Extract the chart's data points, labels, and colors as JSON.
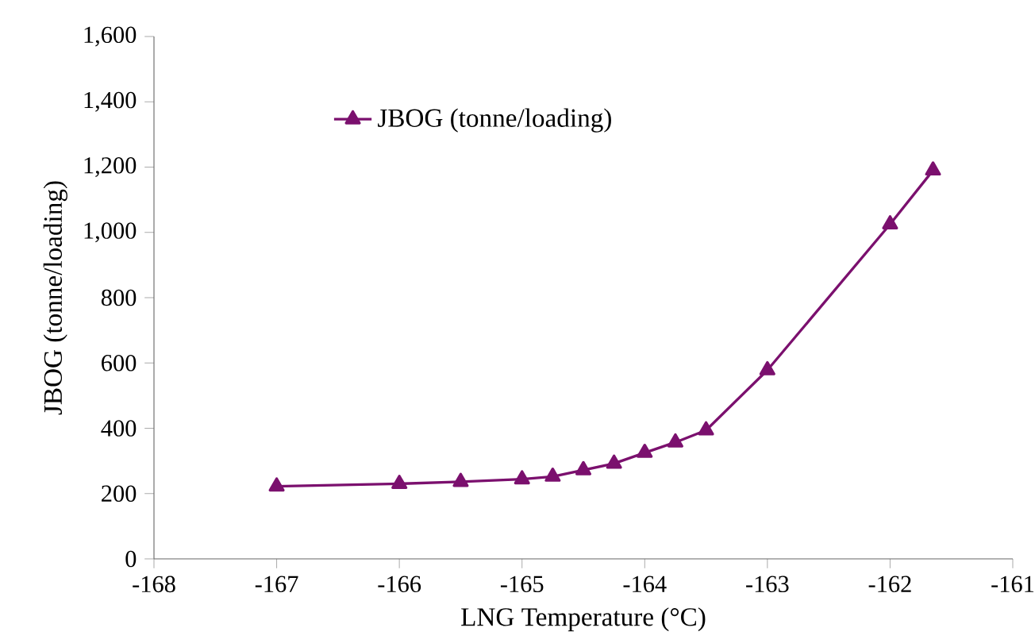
{
  "chart_data": {
    "type": "line",
    "xlabel": "LNG Temperature (°C)",
    "ylabel": "JBOG (tonne/loading)",
    "x": [
      -167,
      -166,
      -165.5,
      -165,
      -164.75,
      -164.5,
      -164.25,
      -164,
      -163.75,
      -163.5,
      -163,
      -162,
      -161.65
    ],
    "series": [
      {
        "name": "JBOG (tonne/loading)",
        "color": "#7b106e",
        "values": [
          222,
          230,
          236,
          244,
          252,
          272,
          292,
          325,
          357,
          394,
          578,
          1025,
          1190
        ]
      }
    ],
    "xlim": [
      -168,
      -161
    ],
    "xticks": [
      -168,
      -167,
      -166,
      -165,
      -164,
      -163,
      -162,
      -161
    ],
    "ylim": [
      0,
      1600
    ],
    "yticks": [
      0,
      200,
      400,
      600,
      800,
      {
        "value": 1000,
        "label": "1,000"
      },
      {
        "value": 1200,
        "label": "1,200"
      },
      {
        "value": 1400,
        "label": "1,400"
      },
      {
        "value": 1600,
        "label": "1,600"
      }
    ],
    "marker": "triangle",
    "line_style": "solid",
    "legend": "top left",
    "grid": false
  }
}
